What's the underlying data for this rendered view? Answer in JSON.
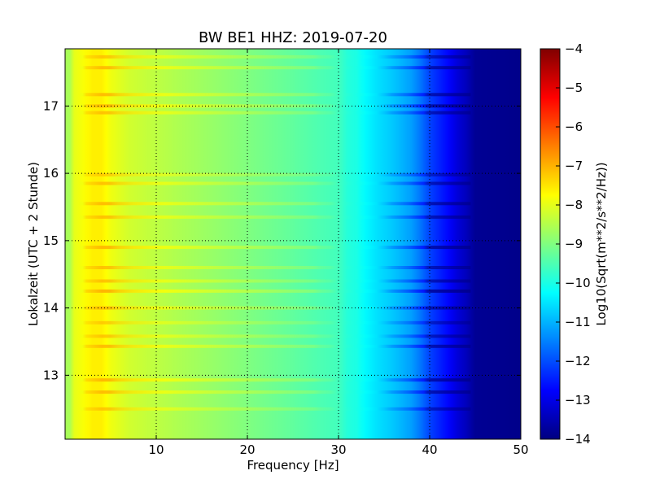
{
  "chart_data": {
    "type": "heatmap",
    "title": "BW BE1 HHZ: 2019-07-20",
    "xlabel": "Frequency [Hz]",
    "ylabel": "Lokalzeit (UTC + 2 Stunde)",
    "colorbar_label": "Log10(Sqrt(m**2/s**2/Hz))",
    "xlim": [
      0,
      50
    ],
    "ylim": [
      17.85,
      12.05
    ],
    "clim": [
      -14,
      -4
    ],
    "colormap": "jet",
    "grid": true,
    "x_ticks": [
      10,
      20,
      30,
      40,
      50
    ],
    "x_tick_labels": [
      "10",
      "20",
      "30",
      "40",
      "50"
    ],
    "y_ticks": [
      13,
      14,
      15,
      16,
      17
    ],
    "y_tick_labels": [
      "13",
      "14",
      "15",
      "16",
      "17"
    ],
    "colorbar_ticks": [
      -4,
      -5,
      -6,
      -7,
      -8,
      -9,
      -10,
      -11,
      -12,
      -13,
      -14
    ],
    "colorbar_tick_labels": [
      "−4",
      "−5",
      "−6",
      "−7",
      "−8",
      "−9",
      "−10",
      "−11",
      "−12",
      "−13",
      "−14"
    ],
    "spectrum_profile": {
      "frequency_hz": [
        0.5,
        1,
        2,
        3,
        4,
        5,
        7,
        10,
        15,
        20,
        25,
        28,
        30,
        31,
        32,
        33,
        34,
        36,
        38,
        39,
        40,
        41,
        42,
        43,
        44,
        45,
        50
      ],
      "log_psd": [
        -8.6,
        -8.0,
        -7.8,
        -7.6,
        -7.6,
        -7.9,
        -8.2,
        -8.4,
        -8.7,
        -9.0,
        -9.3,
        -9.5,
        -9.6,
        -9.9,
        -10.0,
        -10.3,
        -10.5,
        -10.8,
        -11.2,
        -11.6,
        -12.1,
        -12.4,
        -12.7,
        -13.1,
        -13.4,
        -13.8,
        -13.9
      ]
    },
    "time_bands": [
      {
        "hour": 12.5,
        "boost": 0.4
      },
      {
        "hour": 12.75,
        "boost": 0.6
      },
      {
        "hour": 12.93,
        "boost": 0.7
      },
      {
        "hour": 13.43,
        "boost": 0.6
      },
      {
        "hour": 13.58,
        "boost": 0.4
      },
      {
        "hour": 13.78,
        "boost": 0.3
      },
      {
        "hour": 14.0,
        "boost": 0.6
      },
      {
        "hour": 14.25,
        "boost": 0.8
      },
      {
        "hour": 14.4,
        "boost": 0.5
      },
      {
        "hour": 14.6,
        "boost": 0.5
      },
      {
        "hour": 14.9,
        "boost": 0.7
      },
      {
        "hour": 15.35,
        "boost": 0.5
      },
      {
        "hour": 15.55,
        "boost": 0.6
      },
      {
        "hour": 15.85,
        "boost": 0.5
      },
      {
        "hour": 15.98,
        "boost": 0.3
      },
      {
        "hour": 16.9,
        "boost": 0.5
      },
      {
        "hour": 17.0,
        "boost": 0.7
      },
      {
        "hour": 17.17,
        "boost": 0.6
      },
      {
        "hour": 17.57,
        "boost": 0.6
      },
      {
        "hour": 17.73,
        "boost": 0.4
      }
    ]
  }
}
